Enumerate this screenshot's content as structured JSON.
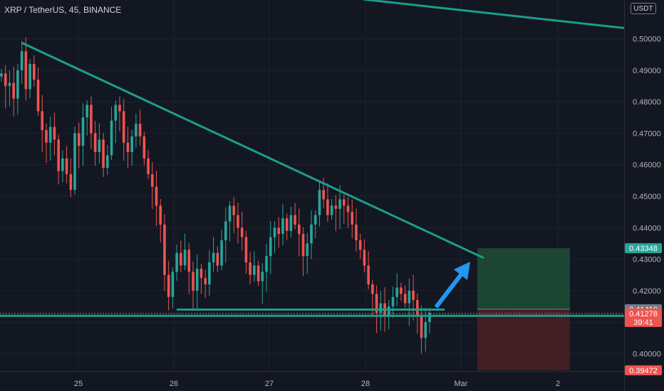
{
  "header": {
    "symbol_title": "XRP / TetherUS, 45, BINANCE",
    "currency_label": "USDT"
  },
  "colors": {
    "background": "#131722",
    "up": "#26a69a",
    "down": "#ef5350",
    "trendline": "#1b9e8c",
    "arrow": "#2196f3",
    "target_zone": "#1e4a36",
    "stop_zone": "#4a1f26"
  },
  "chart_data": {
    "type": "candlestick",
    "title": "",
    "symbol": "XRP / TetherUS",
    "interval": "45",
    "exchange": "BINANCE",
    "currency": "USDT",
    "x_tick_labels": [
      "25",
      "26",
      "27",
      "28",
      "Mar",
      "2"
    ],
    "y_tick_labels": [
      "0.40000",
      "0.41000",
      "0.42000",
      "0.43000",
      "0.44000",
      "0.45000",
      "0.46000",
      "0.47000",
      "0.48000",
      "0.49000",
      "0.50000"
    ],
    "ylim": [
      0.3905,
      0.5105
    ],
    "grid": true,
    "approx_candle_closes": [
      0.489,
      0.485,
      0.486,
      0.481,
      0.49,
      0.496,
      0.484,
      0.492,
      0.487,
      0.477,
      0.471,
      0.467,
      0.472,
      0.468,
      0.458,
      0.462,
      0.457,
      0.452,
      0.47,
      0.466,
      0.475,
      0.479,
      0.47,
      0.464,
      0.468,
      0.459,
      0.463,
      0.474,
      0.479,
      0.477,
      0.467,
      0.464,
      0.469,
      0.473,
      0.469,
      0.462,
      0.457,
      0.453,
      0.447,
      0.441,
      0.425,
      0.418,
      0.426,
      0.432,
      0.428,
      0.433,
      0.426,
      0.42,
      0.427,
      0.424,
      0.422,
      0.429,
      0.432,
      0.428,
      0.436,
      0.442,
      0.447,
      0.444,
      0.44,
      0.437,
      0.429,
      0.425,
      0.428,
      0.423,
      0.426,
      0.431,
      0.437,
      0.44,
      0.438,
      0.443,
      0.439,
      0.444,
      0.441,
      0.438,
      0.431,
      0.435,
      0.441,
      0.444,
      0.452,
      0.449,
      0.444,
      0.447,
      0.446,
      0.449,
      0.447,
      0.445,
      0.441,
      0.436,
      0.433,
      0.428,
      0.422,
      0.419,
      0.413,
      0.416,
      0.412,
      0.415,
      0.418,
      0.421,
      0.419,
      0.416,
      0.42,
      0.417,
      0.412,
      0.405,
      0.41,
      0.413
    ],
    "trendlines": [
      {
        "from": {
          "x": "24 Feb",
          "y": 0.4987
        },
        "to": {
          "x": "1 Mar",
          "y": 0.4304
        }
      },
      {
        "from": {
          "x": "1 Mar",
          "y": 0.5125
        },
        "to": {
          "x": "2 Mar",
          "y": 0.5034
        }
      }
    ],
    "support_levels": [
      0.414,
      0.4127
    ],
    "position": {
      "side": "long",
      "target": 0.43348,
      "entry": 0.4141,
      "stop": 0.39472
    },
    "price_tags": [
      {
        "label": "0.43348",
        "price": 0.43348,
        "color": "#26a69a"
      },
      {
        "label": "0.41410",
        "price": 0.4141,
        "color": "#787b86"
      },
      {
        "label": "0.41278",
        "price": 0.41278,
        "color": "#ef5350",
        "extra": "39:41"
      },
      {
        "label": "0.39472",
        "price": 0.39472,
        "color": "#ef5350"
      }
    ]
  }
}
